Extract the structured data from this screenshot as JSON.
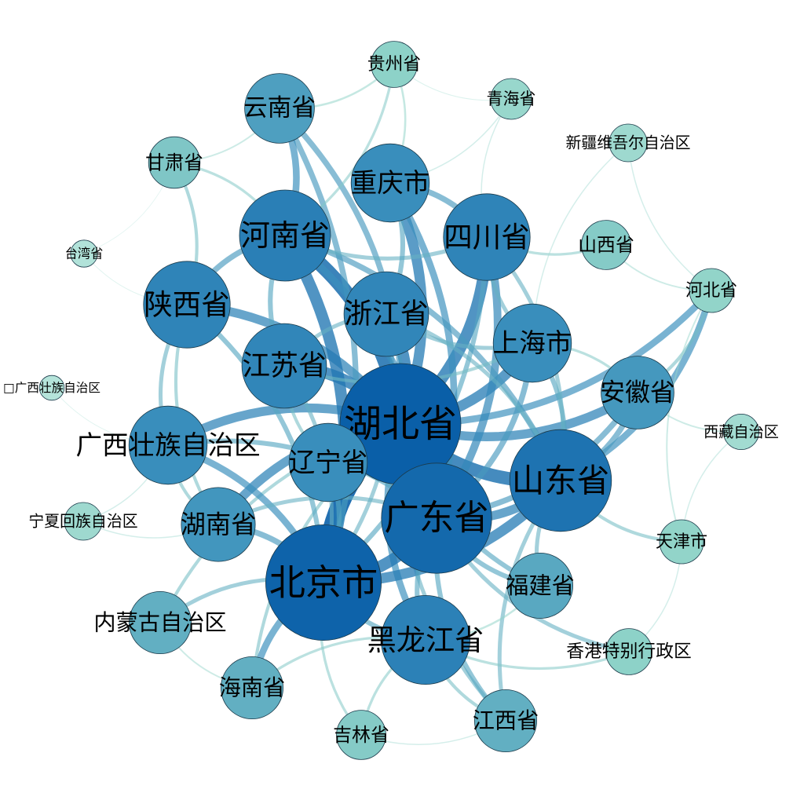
{
  "network": {
    "colors": {
      "strong": "#0a5fa8",
      "mid": "#3a8fbd",
      "weak": "#8fd3c8",
      "faint": "#c9ece4"
    },
    "nodes": [
      {
        "id": "hubei",
        "label": "湖北省",
        "weight": 1.0
      },
      {
        "id": "beijing",
        "label": "北京市",
        "weight": 0.95
      },
      {
        "id": "guangdong",
        "label": "广东省",
        "weight": 0.9
      },
      {
        "id": "shandong",
        "label": "山东省",
        "weight": 0.82
      },
      {
        "id": "heilongjiang",
        "label": "黑龙江省",
        "weight": 0.7
      },
      {
        "id": "henan",
        "label": "河南省",
        "weight": 0.72
      },
      {
        "id": "sichuan",
        "label": "四川省",
        "weight": 0.68
      },
      {
        "id": "shaanxi",
        "label": "陕西省",
        "weight": 0.68
      },
      {
        "id": "zhejiang",
        "label": "浙江省",
        "weight": 0.66
      },
      {
        "id": "jiangsu",
        "label": "江苏省",
        "weight": 0.66
      },
      {
        "id": "guangxi",
        "label": "广西壮族自治区",
        "weight": 0.6
      },
      {
        "id": "liaoning",
        "label": "辽宁省",
        "weight": 0.6
      },
      {
        "id": "chongqing",
        "label": "重庆市",
        "weight": 0.6
      },
      {
        "id": "shanghai",
        "label": "上海市",
        "weight": 0.6
      },
      {
        "id": "hunan",
        "label": "湖南省",
        "weight": 0.56
      },
      {
        "id": "anhui",
        "label": "安徽省",
        "weight": 0.55
      },
      {
        "id": "yunnan",
        "label": "云南省",
        "weight": 0.52
      },
      {
        "id": "fujian",
        "label": "福建省",
        "weight": 0.48
      },
      {
        "id": "neimenggu",
        "label": "内蒙古自治区",
        "weight": 0.45
      },
      {
        "id": "hainan",
        "label": "海南省",
        "weight": 0.45
      },
      {
        "id": "jiangxi",
        "label": "江西省",
        "weight": 0.45
      },
      {
        "id": "gansu",
        "label": "甘肃省",
        "weight": 0.35
      },
      {
        "id": "shanxi",
        "label": "山西省",
        "weight": 0.33
      },
      {
        "id": "jilin",
        "label": "吉林省",
        "weight": 0.33
      },
      {
        "id": "xianggang",
        "label": "香港特别行政区",
        "weight": 0.3
      },
      {
        "id": "guizhou",
        "label": "贵州省",
        "weight": 0.3
      },
      {
        "id": "tianjin",
        "label": "天津市",
        "weight": 0.28
      },
      {
        "id": "hebei",
        "label": "河北省",
        "weight": 0.28
      },
      {
        "id": "qinghai",
        "label": "青海省",
        "weight": 0.25
      },
      {
        "id": "xinjiang",
        "label": "新疆维吾尔自治区",
        "weight": 0.22
      },
      {
        "id": "ningxia",
        "label": "宁夏回族自治区",
        "weight": 0.22
      },
      {
        "id": "xizang",
        "label": "西藏自治区",
        "weight": 0.2
      },
      {
        "id": "taiwan",
        "label": "台湾省",
        "weight": 0.12
      },
      {
        "id": "guangxi_alt",
        "label": "□广西壮族自治区",
        "weight": 0.1
      }
    ],
    "edges": [
      [
        "hubei",
        "beijing",
        1.0
      ],
      [
        "hubei",
        "guangdong",
        0.95
      ],
      [
        "hubei",
        "henan",
        0.9
      ],
      [
        "hubei",
        "shandong",
        0.85
      ],
      [
        "hubei",
        "sichuan",
        0.8
      ],
      [
        "hubei",
        "zhejiang",
        0.8
      ],
      [
        "hubei",
        "jiangsu",
        0.8
      ],
      [
        "hubei",
        "shanghai",
        0.75
      ],
      [
        "hubei",
        "chongqing",
        0.75
      ],
      [
        "hubei",
        "shaanxi",
        0.7
      ],
      [
        "hubei",
        "guangxi",
        0.7
      ],
      [
        "hubei",
        "hunan",
        0.7
      ],
      [
        "hubei",
        "liaoning",
        0.6
      ],
      [
        "hubei",
        "anhui",
        0.7
      ],
      [
        "hubei",
        "heilongjiang",
        0.6
      ],
      [
        "hubei",
        "yunnan",
        0.55
      ],
      [
        "hubei",
        "fujian",
        0.5
      ],
      [
        "hubei",
        "hebei",
        0.6
      ],
      [
        "hubei",
        "jiangxi",
        0.45
      ],
      [
        "hubei",
        "hainan",
        0.4
      ],
      [
        "hubei",
        "neimenggu",
        0.4
      ],
      [
        "beijing",
        "guangdong",
        0.8
      ],
      [
        "beijing",
        "shandong",
        0.75
      ],
      [
        "beijing",
        "henan",
        0.8
      ],
      [
        "beijing",
        "hainan",
        0.6
      ],
      [
        "beijing",
        "yunnan",
        0.55
      ],
      [
        "beijing",
        "guangxi",
        0.6
      ],
      [
        "beijing",
        "hunan",
        0.55
      ],
      [
        "beijing",
        "shaanxi",
        0.5
      ],
      [
        "beijing",
        "heilongjiang",
        0.5
      ],
      [
        "beijing",
        "sichuan",
        0.5
      ],
      [
        "beijing",
        "zhejiang",
        0.45
      ],
      [
        "beijing",
        "jiangsu",
        0.45
      ],
      [
        "beijing",
        "liaoning",
        0.5
      ],
      [
        "beijing",
        "neimenggu",
        0.45
      ],
      [
        "beijing",
        "jilin",
        0.35
      ],
      [
        "guangdong",
        "shandong",
        0.7
      ],
      [
        "guangdong",
        "sichuan",
        0.65
      ],
      [
        "guangdong",
        "chongqing",
        0.6
      ],
      [
        "guangdong",
        "henan",
        0.6
      ],
      [
        "guangdong",
        "anhui",
        0.55
      ],
      [
        "guangdong",
        "shanghai",
        0.55
      ],
      [
        "guangdong",
        "fujian",
        0.5
      ],
      [
        "guangdong",
        "jiangxi",
        0.5
      ],
      [
        "guangdong",
        "heilongjiang",
        0.5
      ],
      [
        "guangdong",
        "xianggang",
        0.45
      ],
      [
        "guangdong",
        "guangxi",
        0.5
      ],
      [
        "guangdong",
        "hunan",
        0.45
      ],
      [
        "shandong",
        "hebei",
        0.6
      ],
      [
        "shandong",
        "anhui",
        0.55
      ],
      [
        "shandong",
        "henan",
        0.55
      ],
      [
        "shandong",
        "shanghai",
        0.5
      ],
      [
        "shandong",
        "fujian",
        0.45
      ],
      [
        "shandong",
        "jiangxi",
        0.45
      ],
      [
        "shandong",
        "tianjin",
        0.4
      ],
      [
        "shandong",
        "sichuan",
        0.45
      ],
      [
        "shandong",
        "zhejiang",
        0.45
      ],
      [
        "henan",
        "yunnan",
        0.6
      ],
      [
        "henan",
        "shaanxi",
        0.55
      ],
      [
        "henan",
        "jiangsu",
        0.5
      ],
      [
        "henan",
        "sichuan",
        0.45
      ],
      [
        "henan",
        "guizhou",
        0.35
      ],
      [
        "henan",
        "gansu",
        0.35
      ],
      [
        "sichuan",
        "chongqing",
        0.55
      ],
      [
        "sichuan",
        "shanghai",
        0.45
      ],
      [
        "sichuan",
        "shanxi",
        0.35
      ],
      [
        "zhejiang",
        "chongqing",
        0.5
      ],
      [
        "zhejiang",
        "shanghai",
        0.45
      ],
      [
        "zhejiang",
        "jiangsu",
        0.45
      ],
      [
        "shaanxi",
        "gansu",
        0.4
      ],
      [
        "shaanxi",
        "guangxi",
        0.45
      ],
      [
        "shaanxi",
        "hunan",
        0.4
      ],
      [
        "jiangsu",
        "liaoning",
        0.4
      ],
      [
        "jiangsu",
        "shanghai",
        0.4
      ],
      [
        "guangxi",
        "hunan",
        0.4
      ],
      [
        "heilongjiang",
        "jiangxi",
        0.4
      ],
      [
        "heilongjiang",
        "hainan",
        0.35
      ],
      [
        "heilongjiang",
        "xianggang",
        0.35
      ],
      [
        "heilongjiang",
        "jilin",
        0.35
      ],
      [
        "heilongjiang",
        "fujian",
        0.3
      ],
      [
        "anhui",
        "hebei",
        0.4
      ],
      [
        "anhui",
        "shanghai",
        0.35
      ],
      [
        "anhui",
        "xizang",
        0.25
      ],
      [
        "yunnan",
        "guizhou",
        0.3
      ],
      [
        "chongqing",
        "guizhou",
        0.3
      ],
      [
        "chongqing",
        "qinghai",
        0.2
      ],
      [
        "shanxi",
        "hebei",
        0.25
      ],
      [
        "hebei",
        "tianjin",
        0.25
      ],
      [
        "xinjiang",
        "hebei",
        0.2
      ],
      [
        "xinjiang",
        "shanghai",
        0.2
      ],
      [
        "ningxia",
        "hunan",
        0.2
      ],
      [
        "ningxia",
        "guangxi",
        0.2
      ],
      [
        "taiwan",
        "shaanxi",
        0.12
      ],
      [
        "guangxi_alt",
        "guangxi",
        0.12
      ],
      [
        "xianggang",
        "tianjin",
        0.2
      ],
      [
        "jilin",
        "jiangxi",
        0.2
      ],
      [
        "qinghai",
        "sichuan",
        0.2
      ],
      [
        "xizang",
        "tianjin",
        0.2
      ],
      [
        "neimenggu",
        "hainan",
        0.25
      ],
      [
        "gansu",
        "yunnan",
        0.25
      ],
      [
        "taiwan",
        "gansu",
        0.1
      ],
      [
        "guizhou",
        "qinghai",
        0.15
      ]
    ]
  }
}
